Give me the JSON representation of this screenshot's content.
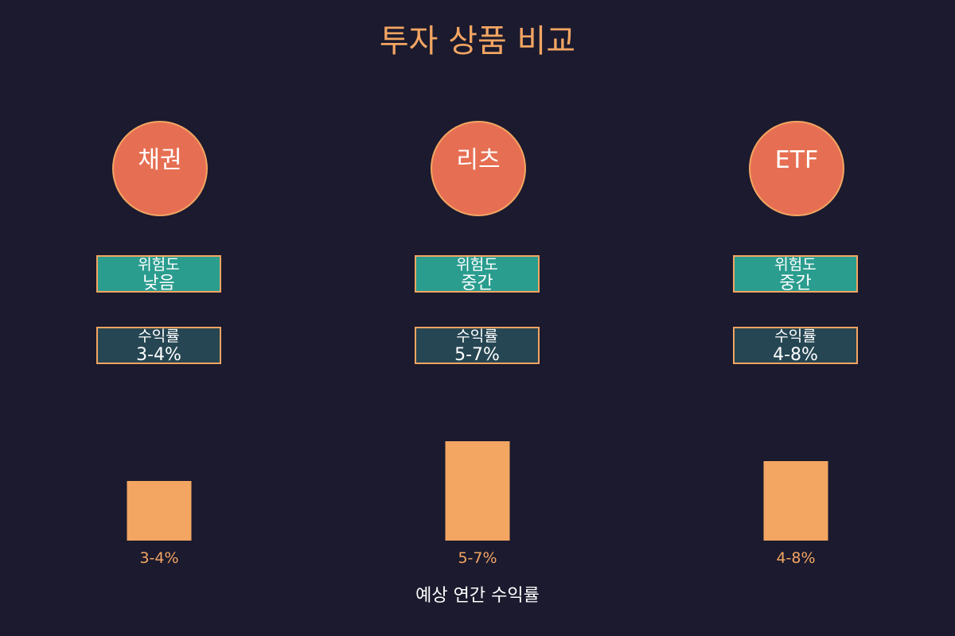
{
  "title": "투자 상품 비교",
  "caption": "예상 연간 수익률",
  "colors": {
    "background": "#1b1a2e",
    "accent": "#f3a562",
    "circle": "#e66f53",
    "risk_box": "#2a9d8f",
    "return_box": "#264653"
  },
  "products": [
    {
      "name": "채권",
      "risk_label": "위험도",
      "risk_value": "낮음",
      "return_label": "수익률",
      "return_value": "3-4%"
    },
    {
      "name": "리츠",
      "risk_label": "위험도",
      "risk_value": "중간",
      "return_label": "수익률",
      "return_value": "5-7%"
    },
    {
      "name": "ETF",
      "risk_label": "위험도",
      "risk_value": "중간",
      "return_label": "수익률",
      "return_value": "4-8%"
    }
  ],
  "chart_data": {
    "type": "bar",
    "categories": [
      "채권",
      "리츠",
      "ETF"
    ],
    "values": [
      3.0,
      5.0,
      4.0
    ],
    "bar_labels": [
      "3-4%",
      "5-7%",
      "4-8%"
    ],
    "title": "",
    "xlabel": "예상 연간 수익률",
    "ylabel": "",
    "ylim": [
      0,
      8
    ],
    "grid": false
  }
}
